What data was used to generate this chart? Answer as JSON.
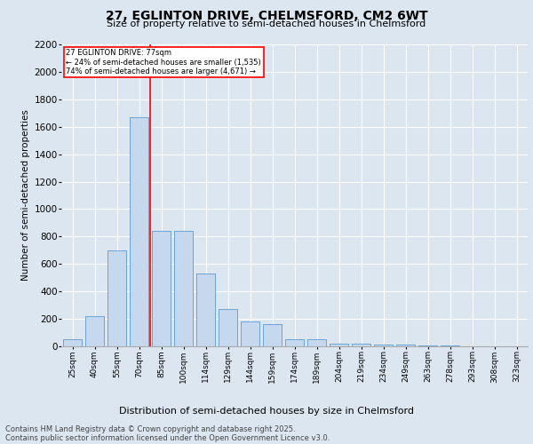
{
  "title": "27, EGLINTON DRIVE, CHELMSFORD, CM2 6WT",
  "subtitle": "Size of property relative to semi-detached houses in Chelmsford",
  "xlabel": "Distribution of semi-detached houses by size in Chelmsford",
  "ylabel": "Number of semi-detached properties",
  "annotation_line1": "27 EGLINTON DRIVE: 77sqm",
  "annotation_line2": "← 24% of semi-detached houses are smaller (1,535)",
  "annotation_line3": "74% of semi-detached houses are larger (4,671) →",
  "categories": [
    "25sqm",
    "40sqm",
    "55sqm",
    "70sqm",
    "85sqm",
    "100sqm",
    "114sqm",
    "129sqm",
    "144sqm",
    "159sqm",
    "174sqm",
    "189sqm",
    "204sqm",
    "219sqm",
    "234sqm",
    "249sqm",
    "263sqm",
    "278sqm",
    "293sqm",
    "308sqm",
    "323sqm"
  ],
  "values": [
    50,
    220,
    700,
    1670,
    840,
    840,
    530,
    270,
    180,
    160,
    55,
    55,
    20,
    20,
    10,
    10,
    5,
    5,
    2,
    2,
    1
  ],
  "bar_color": "#c5d8ed",
  "bar_edge_color": "#5b9bd5",
  "line_color": "red",
  "background_color": "#dce6f1",
  "plot_bg_color": "#dce6f1",
  "ylim": [
    0,
    2200
  ],
  "yticks": [
    0,
    200,
    400,
    600,
    800,
    1000,
    1200,
    1400,
    1600,
    1800,
    2000,
    2200
  ],
  "footer_line1": "Contains HM Land Registry data © Crown copyright and database right 2025.",
  "footer_line2": "Contains public sector information licensed under the Open Government Licence v3.0."
}
